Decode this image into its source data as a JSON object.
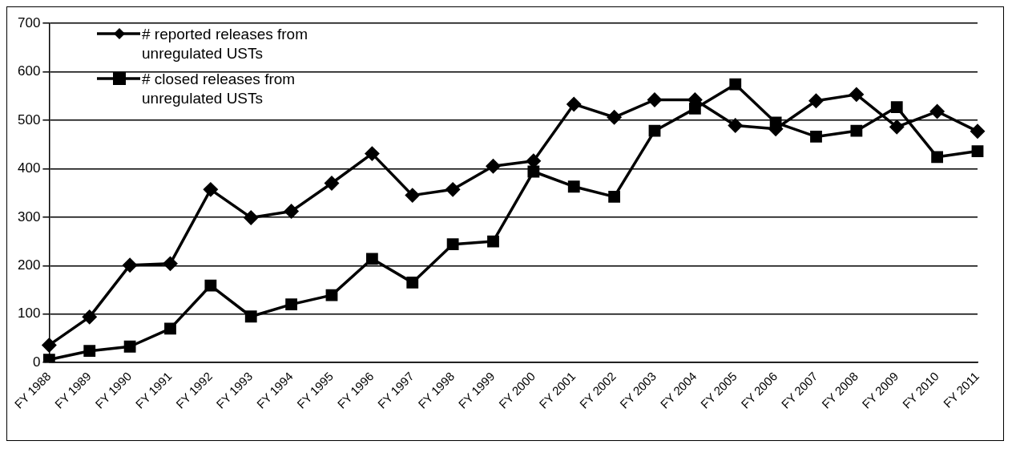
{
  "chart_data": {
    "type": "line",
    "categories": [
      "FY 1988",
      "FY 1989",
      "FY 1990",
      "FY 1991",
      "FY 1992",
      "FY 1993",
      "FY 1994",
      "FY 1995",
      "FY 1996",
      "FY 1997",
      "FY 1998",
      "FY 1999",
      "FY 2000",
      "FY 2001",
      "FY 2002",
      "FY 2003",
      "FY 2004",
      "FY 2005",
      "FY 2006",
      "FY 2007",
      "FY 2008",
      "FY 2009",
      "FY 2010",
      "FY 2011"
    ],
    "series": [
      {
        "name": "# reported releases from unregulated USTs",
        "color": "#000000",
        "marker": "diamond",
        "values": [
          36,
          94,
          201,
          204,
          357,
          299,
          312,
          370,
          431,
          345,
          357,
          405,
          416,
          533,
          506,
          542,
          542,
          489,
          482,
          540,
          553,
          486,
          518,
          477
        ]
      },
      {
        "name": "# closed releases from unregulated USTs",
        "color": "#000000",
        "marker": "square",
        "values": [
          6,
          24,
          33,
          70,
          159,
          95,
          120,
          139,
          214,
          165,
          244,
          250,
          394,
          363,
          342,
          478,
          524,
          574,
          495,
          466,
          478,
          527,
          424,
          436
        ]
      }
    ],
    "ylim": [
      0,
      700
    ],
    "yticks": [
      0,
      100,
      200,
      300,
      400,
      500,
      600,
      700
    ],
    "grid": "y",
    "legend": "top left",
    "line_style": "solid"
  }
}
